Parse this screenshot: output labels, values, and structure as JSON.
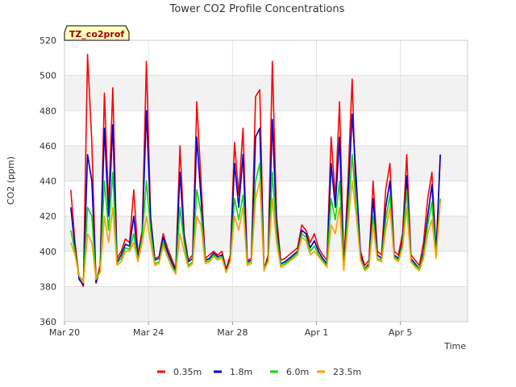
{
  "chart_data": {
    "type": "line",
    "title": "Tower CO2 Profile Concentrations",
    "xlabel": "Time",
    "ylabel": "CO2 (ppm)",
    "site_label": "TZ_co2prof",
    "x_unit": "days since Mar 20",
    "xlim": [
      0,
      19.2
    ],
    "ylim": [
      360,
      520
    ],
    "yticks": [
      360,
      380,
      400,
      420,
      440,
      460,
      480,
      500,
      520
    ],
    "xticks": [
      {
        "value": 0,
        "label": "Mar 20"
      },
      {
        "value": 4,
        "label": "Mar 24"
      },
      {
        "value": 8,
        "label": "Mar 28"
      },
      {
        "value": 12,
        "label": "Apr 1"
      },
      {
        "value": 16,
        "label": "Apr 5"
      }
    ],
    "legend_position": "bottom",
    "x": [
      0.3,
      0.5,
      0.7,
      0.9,
      1.1,
      1.3,
      1.5,
      1.7,
      1.9,
      2.1,
      2.3,
      2.5,
      2.7,
      2.9,
      3.1,
      3.3,
      3.5,
      3.7,
      3.9,
      4.1,
      4.3,
      4.5,
      4.7,
      4.9,
      5.1,
      5.3,
      5.5,
      5.7,
      5.9,
      6.1,
      6.3,
      6.5,
      6.7,
      6.9,
      7.1,
      7.3,
      7.5,
      7.7,
      7.9,
      8.1,
      8.3,
      8.5,
      8.7,
      8.9,
      9.1,
      9.3,
      9.5,
      9.7,
      9.9,
      10.1,
      10.3,
      10.5,
      10.7,
      10.9,
      11.1,
      11.3,
      11.5,
      11.7,
      11.9,
      12.1,
      12.3,
      12.5,
      12.7,
      12.9,
      13.1,
      13.3,
      13.5,
      13.7,
      13.9,
      14.1,
      14.3,
      14.5,
      14.7,
      14.9,
      15.1,
      15.3,
      15.5,
      15.7,
      15.9,
      16.1,
      16.3,
      16.5,
      16.7,
      16.9,
      17.1,
      17.3,
      17.5,
      17.7,
      17.9
    ],
    "series": [
      {
        "name": "0.35m",
        "color": "#ff0000",
        "values": [
          435,
          405,
          385,
          380,
          512,
          462,
          383,
          392,
          490,
          425,
          493,
          396,
          400,
          407,
          405,
          435,
          398,
          412,
          508,
          420,
          396,
          397,
          410,
          402,
          396,
          390,
          460,
          410,
          395,
          398,
          485,
          440,
          396,
          398,
          400,
          398,
          400,
          390,
          398,
          462,
          432,
          470,
          395,
          396,
          488,
          492,
          390,
          398,
          508,
          420,
          395,
          396,
          398,
          400,
          402,
          415,
          412,
          405,
          410,
          402,
          398,
          395,
          465,
          430,
          485,
          392,
          440,
          498,
          420,
          400,
          392,
          395,
          440,
          400,
          398,
          435,
          450,
          400,
          398,
          410,
          455,
          398,
          395,
          392,
          405,
          430,
          445,
          400,
          455
        ]
      },
      {
        "name": "1.8m",
        "color": "#0000cc",
        "values": [
          425,
          402,
          384,
          381,
          455,
          440,
          382,
          390,
          470,
          420,
          472,
          394,
          398,
          404,
          403,
          420,
          396,
          410,
          480,
          418,
          395,
          396,
          408,
          400,
          394,
          389,
          445,
          408,
          394,
          396,
          465,
          430,
          395,
          396,
          399,
          397,
          398,
          389,
          396,
          450,
          425,
          455,
          394,
          395,
          465,
          470,
          389,
          396,
          475,
          415,
          393,
          394,
          396,
          398,
          400,
          412,
          410,
          402,
          406,
          400,
          396,
          393,
          450,
          425,
          465,
          390,
          430,
          478,
          440,
          398,
          390,
          393,
          430,
          398,
          396,
          425,
          440,
          398,
          396,
          406,
          443,
          396,
          393,
          390,
          400,
          420,
          438,
          398,
          455
        ]
      },
      {
        "name": "6.0m",
        "color": "#00dd00",
        "values": [
          412,
          400,
          386,
          383,
          425,
          420,
          384,
          389,
          440,
          412,
          445,
          393,
          396,
          402,
          401,
          410,
          395,
          408,
          440,
          412,
          393,
          394,
          405,
          398,
          392,
          388,
          425,
          405,
          392,
          394,
          435,
          422,
          394,
          395,
          398,
          396,
          397,
          388,
          395,
          430,
          418,
          432,
          393,
          394,
          440,
          450,
          390,
          395,
          445,
          410,
          392,
          393,
          395,
          397,
          399,
          410,
          408,
          400,
          403,
          398,
          395,
          392,
          430,
          418,
          440,
          390,
          422,
          455,
          425,
          396,
          390,
          392,
          420,
          396,
          395,
          418,
          432,
          397,
          395,
          404,
          435,
          395,
          392,
          390,
          398,
          415,
          428,
          397,
          430
        ]
      },
      {
        "name": "23.5m",
        "color": "#ffa000",
        "values": [
          405,
          398,
          386,
          382,
          410,
          405,
          384,
          388,
          420,
          405,
          425,
          392,
          394,
          400,
          400,
          405,
          394,
          405,
          420,
          405,
          392,
          393,
          403,
          397,
          391,
          387,
          410,
          400,
          391,
          393,
          420,
          415,
          393,
          394,
          397,
          395,
          396,
          388,
          394,
          420,
          412,
          425,
          392,
          393,
          430,
          440,
          389,
          394,
          430,
          405,
          391,
          392,
          394,
          396,
          398,
          408,
          406,
          398,
          400,
          397,
          394,
          391,
          415,
          410,
          425,
          389,
          415,
          440,
          420,
          395,
          389,
          391,
          415,
          395,
          394,
          412,
          425,
          396,
          394,
          402,
          425,
          394,
          391,
          389,
          396,
          410,
          418,
          396,
          428
        ]
      }
    ]
  }
}
